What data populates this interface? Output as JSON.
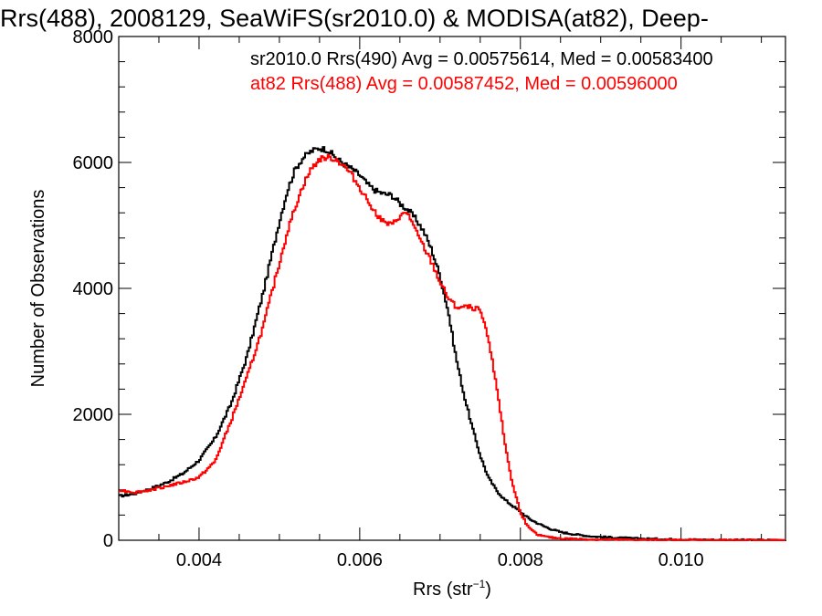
{
  "chart_data": {
    "type": "line",
    "title": "Rrs(488), 2008129, SeaWiFS(sr2010.0) & MODISA(at82), Deep-",
    "xlabel_main": "Rrs (str",
    "xlabel_sup": "−1",
    "xlabel_end": ")",
    "ylabel": "Number of Observations",
    "xlim": [
      0.003,
      0.0113
    ],
    "ylim": [
      0,
      8000
    ],
    "xticks": [
      0.004,
      0.006,
      0.008,
      0.01
    ],
    "xtick_labels": [
      "0.004",
      "0.006",
      "0.008",
      "0.010"
    ],
    "yticks": [
      0,
      2000,
      4000,
      6000,
      8000
    ],
    "ytick_labels": [
      "0",
      "2000",
      "4000",
      "6000",
      "8000"
    ],
    "grid": false,
    "legend_placement": "top-right",
    "series": [
      {
        "name": "sr2010.0 Rrs(490) Avg = 0.00575614, Med = 0.00583400",
        "color": "#000000",
        "x": [
          0.003,
          0.0032,
          0.0034,
          0.0036,
          0.0038,
          0.004,
          0.0042,
          0.0044,
          0.0046,
          0.0048,
          0.005,
          0.0051,
          0.0052,
          0.0053,
          0.0054,
          0.0055,
          0.0056,
          0.0057,
          0.0058,
          0.0059,
          0.006,
          0.0061,
          0.0062,
          0.0063,
          0.0064,
          0.0065,
          0.0066,
          0.0067,
          0.0068,
          0.0069,
          0.007,
          0.0071,
          0.0072,
          0.0073,
          0.0074,
          0.0075,
          0.0076,
          0.0077,
          0.0078,
          0.0079,
          0.008,
          0.0081,
          0.0082,
          0.0083,
          0.0084,
          0.0085,
          0.0087,
          0.0089,
          0.0092,
          0.0095,
          0.01,
          0.0105,
          0.0113
        ],
        "y": [
          700,
          740,
          820,
          920,
          1060,
          1270,
          1620,
          2170,
          2930,
          3940,
          5060,
          5550,
          5900,
          6080,
          6180,
          6230,
          6200,
          6080,
          5980,
          5900,
          5800,
          5650,
          5550,
          5500,
          5480,
          5350,
          5250,
          5100,
          4900,
          4600,
          4200,
          3650,
          2900,
          2300,
          1800,
          1350,
          1000,
          800,
          650,
          550,
          450,
          350,
          280,
          220,
          170,
          130,
          90,
          60,
          40,
          25,
          12,
          5,
          0
        ]
      },
      {
        "name": "at82 Rrs(488) Avg = 0.00587452, Med = 0.00596000",
        "color": "#ff0000",
        "x": [
          0.003,
          0.0032,
          0.0034,
          0.0036,
          0.0038,
          0.004,
          0.0042,
          0.0044,
          0.0046,
          0.0048,
          0.005,
          0.0051,
          0.0052,
          0.0053,
          0.0054,
          0.0055,
          0.0056,
          0.0057,
          0.0058,
          0.0059,
          0.006,
          0.0061,
          0.0062,
          0.0063,
          0.0064,
          0.0065,
          0.0066,
          0.0067,
          0.0068,
          0.0069,
          0.007,
          0.0071,
          0.0072,
          0.0073,
          0.0074,
          0.0075,
          0.0076,
          0.0077,
          0.0078,
          0.0079,
          0.008,
          0.0081,
          0.0082,
          0.0083,
          0.0084,
          0.0085,
          0.0087,
          0.0089,
          0.0092,
          0.0095,
          0.01,
          0.0105,
          0.0113
        ],
        "y": [
          800,
          760,
          800,
          860,
          920,
          1000,
          1250,
          1900,
          2600,
          3400,
          4400,
          4900,
          5300,
          5650,
          5900,
          6050,
          6080,
          6050,
          5950,
          5800,
          5600,
          5400,
          5200,
          5050,
          5000,
          5150,
          5200,
          4900,
          4650,
          4400,
          4100,
          3850,
          3700,
          3700,
          3700,
          3650,
          3200,
          2500,
          1600,
          900,
          450,
          200,
          100,
          60,
          40,
          30,
          20,
          12,
          8,
          5,
          3,
          2,
          0
        ]
      }
    ]
  }
}
